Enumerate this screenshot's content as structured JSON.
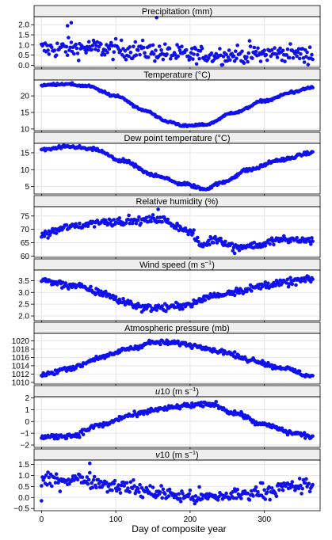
{
  "chart_data": {
    "type": "scatter",
    "xlabel": "Day of composite year",
    "xlim": [
      -10,
      375
    ],
    "x_ticks": [
      0,
      100,
      200,
      300
    ],
    "x_tick_labels": [
      "0",
      "100",
      "200",
      "300"
    ],
    "point_color": "#1010ee",
    "grid": true,
    "grid_color": "#e6e6e6",
    "strip_color": "#eeeeee",
    "panels": [
      {
        "name": "precipitation",
        "title_parts": [
          {
            "t": "Precipitation (mm)"
          }
        ],
        "ylim": [
          -0.1,
          2.4
        ],
        "y_ticks": [
          0,
          0.5,
          1.0,
          1.5,
          2.0
        ],
        "y_tick_labels": [
          "0.0",
          "0.5",
          "1.0",
          "1.5",
          "2.0"
        ],
        "model": {
          "kind": "noise",
          "knots": [
            [
              0,
              0.8
            ],
            [
              60,
              0.85
            ],
            [
              120,
              0.75
            ],
            [
              200,
              0.5
            ],
            [
              260,
              0.5
            ],
            [
              330,
              0.6
            ],
            [
              365,
              0.5
            ]
          ],
          "noise": 0.42,
          "min": 0.0
        },
        "outliers": [
          [
            40,
            2.1
          ],
          [
            155,
            2.35
          ],
          [
            35,
            1.95
          ]
        ]
      },
      {
        "name": "temperature",
        "title_parts": [
          {
            "t": "Temperature (°C)"
          }
        ],
        "ylim": [
          9.5,
          24.8
        ],
        "y_ticks": [
          10,
          15,
          20
        ],
        "y_tick_labels": [
          "10",
          "15",
          "20"
        ],
        "model": {
          "kind": "smooth",
          "knots": [
            [
              0,
              23.2
            ],
            [
              30,
              23.6
            ],
            [
              60,
              23.0
            ],
            [
              100,
              20.0
            ],
            [
              140,
              15.5
            ],
            [
              170,
              12.2
            ],
            [
              195,
              10.9
            ],
            [
              220,
              11.3
            ],
            [
              260,
              15.0
            ],
            [
              300,
              18.5
            ],
            [
              340,
              21.2
            ],
            [
              365,
              22.6
            ]
          ],
          "noise": 0.28
        }
      },
      {
        "name": "dew-point",
        "title_parts": [
          {
            "t": "Dew point temperature (°C)"
          }
        ],
        "ylim": [
          2.8,
          17.8
        ],
        "y_ticks": [
          5,
          10,
          15
        ],
        "y_tick_labels": [
          "5",
          "10",
          "15"
        ],
        "model": {
          "kind": "smooth",
          "knots": [
            [
              0,
              15.9
            ],
            [
              40,
              16.8
            ],
            [
              70,
              16.0
            ],
            [
              110,
              12.5
            ],
            [
              150,
              8.5
            ],
            [
              190,
              5.8
            ],
            [
              220,
              4.3
            ],
            [
              240,
              6.0
            ],
            [
              280,
              10.0
            ],
            [
              320,
              12.8
            ],
            [
              365,
              15.0
            ]
          ],
          "noise": 0.4
        }
      },
      {
        "name": "relative-humidity",
        "title_parts": [
          {
            "t": "Relative humidity (%)"
          }
        ],
        "ylim": [
          59.5,
          78.5
        ],
        "y_ticks": [
          60,
          65,
          70,
          75
        ],
        "y_tick_labels": [
          "60",
          "65",
          "70",
          "75"
        ],
        "model": {
          "kind": "noise",
          "knots": [
            [
              0,
              68
            ],
            [
              40,
              71
            ],
            [
              80,
              72.8
            ],
            [
              130,
              73.2
            ],
            [
              160,
              73.8
            ],
            [
              180,
              71.5
            ],
            [
              200,
              69.0
            ],
            [
              215,
              64.0
            ],
            [
              235,
              66.5
            ],
            [
              260,
              63.5
            ],
            [
              290,
              64.0
            ],
            [
              320,
              66.0
            ],
            [
              365,
              66.0
            ]
          ],
          "noise": 1.3
        },
        "outliers": [
          [
            157,
            77.5
          ],
          [
            260,
            61.0
          ]
        ]
      },
      {
        "name": "wind-speed",
        "title_parts": [
          {
            "t": "Wind speed (m s"
          },
          {
            "t": "−1",
            "sup": true
          },
          {
            "t": ")"
          }
        ],
        "ylim": [
          1.8,
          3.95
        ],
        "y_ticks": [
          2.0,
          2.5,
          3.0,
          3.5
        ],
        "y_tick_labels": [
          "2.0",
          "2.5",
          "3.0",
          "3.5"
        ],
        "model": {
          "kind": "noise",
          "knots": [
            [
              0,
              3.5
            ],
            [
              40,
              3.3
            ],
            [
              80,
              3.0
            ],
            [
              110,
              2.6
            ],
            [
              140,
              2.35
            ],
            [
              170,
              2.35
            ],
            [
              200,
              2.5
            ],
            [
              230,
              2.85
            ],
            [
              270,
              3.1
            ],
            [
              310,
              3.35
            ],
            [
              365,
              3.55
            ]
          ],
          "noise": 0.14
        }
      },
      {
        "name": "atmospheric-pressure",
        "title_parts": [
          {
            "t": "Atmospheric pressure (mb)"
          }
        ],
        "ylim": [
          1009.6,
          1021.8
        ],
        "y_ticks": [
          1010,
          1012,
          1014,
          1016,
          1018,
          1020
        ],
        "y_tick_labels": [
          "1010",
          "1012",
          "1014",
          "1016",
          "1018",
          "1020"
        ],
        "model": {
          "kind": "noise",
          "knots": [
            [
              0,
              1011.8
            ],
            [
              40,
              1013.5
            ],
            [
              80,
              1016.0
            ],
            [
              120,
              1018.2
            ],
            [
              150,
              1019.6
            ],
            [
              180,
              1019.5
            ],
            [
              210,
              1018.8
            ],
            [
              240,
              1017.5
            ],
            [
              280,
              1015.5
            ],
            [
              320,
              1013.6
            ],
            [
              365,
              1011.5
            ]
          ],
          "noise": 0.5
        }
      },
      {
        "name": "u10",
        "title_parts": [
          {
            "t": "u",
            "italic": true
          },
          {
            "t": "10 (m s"
          },
          {
            "t": "−1",
            "sup": true
          },
          {
            "t": ")"
          }
        ],
        "ylim": [
          -2.2,
          2.1
        ],
        "y_ticks": [
          -2,
          -1,
          0,
          1,
          2
        ],
        "y_tick_labels": [
          "−2",
          "−1",
          "0",
          "1",
          "2"
        ],
        "model": {
          "kind": "smooth",
          "knots": [
            [
              0,
              -1.35
            ],
            [
              40,
              -1.2
            ],
            [
              80,
              -0.3
            ],
            [
              120,
              0.5
            ],
            [
              160,
              1.05
            ],
            [
              200,
              1.35
            ],
            [
              230,
              1.45
            ],
            [
              260,
              0.7
            ],
            [
              300,
              -0.3
            ],
            [
              340,
              -1.0
            ],
            [
              365,
              -1.3
            ]
          ],
          "noise": 0.18
        }
      },
      {
        "name": "v10",
        "title_parts": [
          {
            "t": "v",
            "italic": true
          },
          {
            "t": "10 (m s"
          },
          {
            "t": "−1",
            "sup": true
          },
          {
            "t": ")"
          }
        ],
        "ylim": [
          -0.6,
          1.7
        ],
        "y_ticks": [
          -0.5,
          0,
          0.5,
          1.0,
          1.5
        ],
        "y_tick_labels": [
          "−0.5",
          "0.0",
          "0.5",
          "1.0",
          "1.5"
        ],
        "model": {
          "kind": "noise",
          "knots": [
            [
              0,
              0.75
            ],
            [
              50,
              0.85
            ],
            [
              100,
              0.55
            ],
            [
              150,
              0.25
            ],
            [
              190,
              0.05
            ],
            [
              220,
              0.0
            ],
            [
              260,
              0.1
            ],
            [
              300,
              0.3
            ],
            [
              340,
              0.5
            ],
            [
              365,
              0.55
            ]
          ],
          "noise": 0.3
        },
        "outliers": [
          [
            65,
            1.55
          ],
          [
            0,
            -0.15
          ]
        ]
      }
    ]
  }
}
